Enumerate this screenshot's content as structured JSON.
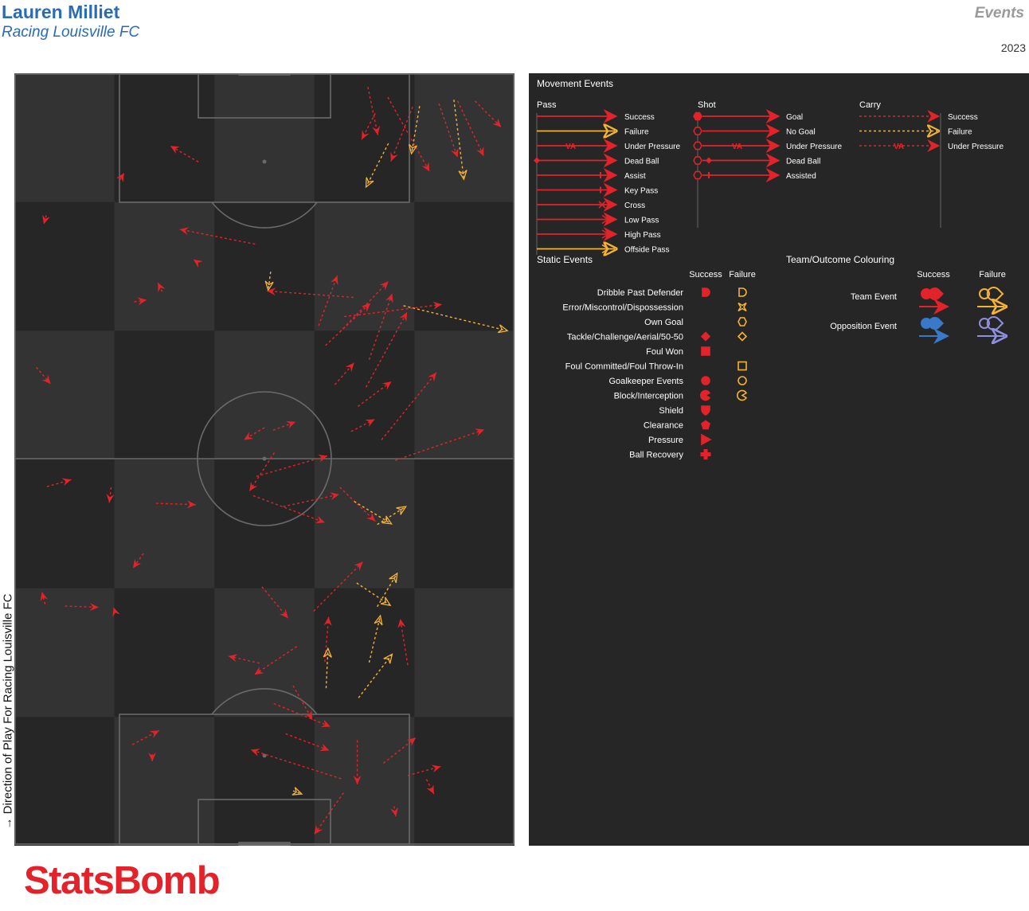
{
  "header": {
    "player": "Lauren Milliet",
    "team": "Racing Louisville FC",
    "section": "Events",
    "season": "2023"
  },
  "direction_label": "Direction of Play For Racing Louisville FC",
  "logo_text": "StatsBomb",
  "colors": {
    "success": "#e2232a",
    "failure": "#f5b335",
    "opp_success": "#3a78c9",
    "opp_failure": "#8f8fe0",
    "pitch_light": "#333333",
    "pitch_dark": "#262626",
    "pitch_lines": "#6a6a6a",
    "legend_bg": "#262626"
  },
  "legend": {
    "movement_title": "Movement Events",
    "pass": {
      "title": "Pass",
      "items": [
        "Success",
        "Failure",
        "Under Pressure",
        "Dead Ball",
        "Assist",
        "Key Pass",
        "Cross",
        "Low Pass",
        "High Pass",
        "Offside Pass"
      ]
    },
    "shot": {
      "title": "Shot",
      "items": [
        "Goal",
        "No Goal",
        "Under Pressure",
        "Dead Ball",
        "Assisted"
      ]
    },
    "carry": {
      "title": "Carry",
      "items": [
        "Success",
        "Failure",
        "Under Pressure"
      ]
    },
    "static_title": "Static Events",
    "static_success_header": "Success",
    "static_failure_header": "Failure",
    "static_items": [
      {
        "label": "Dribble Past Defender",
        "success_icon": "half-circle-icon",
        "failure_icon": "half-circle-icon"
      },
      {
        "label": "Error/Miscontrol/Dispossession",
        "success_icon": "",
        "failure_icon": "star-icon"
      },
      {
        "label": "Own Goal",
        "success_icon": "",
        "failure_icon": "hexagon-icon"
      },
      {
        "label": "Tackle/Challenge/Aerial/50-50",
        "success_icon": "diamond-icon",
        "failure_icon": "diamond-icon"
      },
      {
        "label": "Foul Won",
        "success_icon": "square-icon",
        "failure_icon": ""
      },
      {
        "label": "Foul Committed/Foul Throw-In",
        "success_icon": "",
        "failure_icon": "square-icon"
      },
      {
        "label": "Goalkeeper Events",
        "success_icon": "circle-icon",
        "failure_icon": "circle-icon"
      },
      {
        "label": "Block/Interception",
        "success_icon": "pacman-icon",
        "failure_icon": "pacman-icon"
      },
      {
        "label": "Shield",
        "success_icon": "shield-icon",
        "failure_icon": ""
      },
      {
        "label": "Clearance",
        "success_icon": "pentagon-icon",
        "failure_icon": ""
      },
      {
        "label": "Pressure",
        "success_icon": "triangle-icon",
        "failure_icon": ""
      },
      {
        "label": "Ball Recovery",
        "success_icon": "cross-icon",
        "failure_icon": ""
      }
    ],
    "team_title": "Team/Outcome Colouring",
    "team_success_header": "Success",
    "team_failure_header": "Failure",
    "team_rows": [
      "Team Event",
      "Opposition Event"
    ]
  },
  "chart_data": {
    "type": "scatter",
    "description_units": "pitch coordinates: x = width 0-80 (left to right), y = length 0-120 (attack direction up, bottom 0)",
    "xlim": [
      0,
      80
    ],
    "ylim": [
      0,
      120
    ],
    "legend_placement": "right",
    "events": [
      {
        "x": 56.6,
        "y": 118.0,
        "x2": 58.2,
        "y2": 110.5,
        "kind": "pass",
        "outcome": "success"
      },
      {
        "x": 59.8,
        "y": 116.4,
        "x2": 66.5,
        "y2": 104.8,
        "kind": "pass",
        "outcome": "success"
      },
      {
        "x": 63.8,
        "y": 114.9,
        "x2": 60.3,
        "y2": 106.4,
        "kind": "pass",
        "outcome": "success"
      },
      {
        "x": 64.9,
        "y": 115.0,
        "x2": 63.6,
        "y2": 107.6,
        "kind": "pass",
        "outcome": "failure"
      },
      {
        "x": 68.0,
        "y": 115.4,
        "x2": 71.0,
        "y2": 107.0,
        "kind": "pass",
        "outcome": "success"
      },
      {
        "x": 71.0,
        "y": 115.8,
        "x2": 75.2,
        "y2": 107.2,
        "kind": "pass",
        "outcome": "success"
      },
      {
        "x": 70.4,
        "y": 116.0,
        "x2": 72.0,
        "y2": 103.6,
        "kind": "pass",
        "outcome": "failure"
      },
      {
        "x": 73.8,
        "y": 115.8,
        "x2": 78.0,
        "y2": 111.7,
        "kind": "pass",
        "outcome": "success"
      },
      {
        "x": 57.8,
        "y": 113.9,
        "x2": 55.6,
        "y2": 109.8,
        "kind": "pass",
        "outcome": "success"
      },
      {
        "x": 59.9,
        "y": 109.2,
        "x2": 56.3,
        "y2": 102.4,
        "kind": "pass",
        "outcome": "failure"
      },
      {
        "x": 29.4,
        "y": 106.3,
        "x2": 24.9,
        "y2": 108.8,
        "kind": "carry",
        "outcome": "success"
      },
      {
        "x": 16.8,
        "y": 103.5,
        "x2": 17.5,
        "y2": 104.6,
        "kind": "carry",
        "outcome": "success"
      },
      {
        "x": 5.0,
        "y": 98.0,
        "x2": 4.6,
        "y2": 96.6,
        "kind": "carry",
        "outcome": "success"
      },
      {
        "x": 38.5,
        "y": 93.5,
        "x2": 26.4,
        "y2": 95.8,
        "kind": "pass",
        "outcome": "success"
      },
      {
        "x": 29.2,
        "y": 90.7,
        "x2": 28.6,
        "y2": 91.1,
        "kind": "carry",
        "outcome": "success"
      },
      {
        "x": 41.0,
        "y": 89.2,
        "x2": 40.6,
        "y2": 86.3,
        "kind": "pass",
        "outcome": "failure"
      },
      {
        "x": 23.6,
        "y": 86.1,
        "x2": 22.9,
        "y2": 87.5,
        "kind": "carry",
        "outcome": "success"
      },
      {
        "x": 19.1,
        "y": 84.5,
        "x2": 21.1,
        "y2": 84.8,
        "kind": "carry",
        "outcome": "success"
      },
      {
        "x": 54.3,
        "y": 85.2,
        "x2": 40.4,
        "y2": 86.2,
        "kind": "pass",
        "outcome": "success"
      },
      {
        "x": 62.3,
        "y": 83.9,
        "x2": 79.0,
        "y2": 80.0,
        "kind": "pass",
        "outcome": "failure"
      },
      {
        "x": 52.8,
        "y": 82.2,
        "x2": 68.5,
        "y2": 84.1,
        "kind": "pass",
        "outcome": "success"
      },
      {
        "x": 48.7,
        "y": 80.8,
        "x2": 51.7,
        "y2": 88.6,
        "kind": "pass",
        "outcome": "success"
      },
      {
        "x": 52.1,
        "y": 79.8,
        "x2": 59.9,
        "y2": 87.7,
        "kind": "pass",
        "outcome": "success"
      },
      {
        "x": 49.8,
        "y": 77.7,
        "x2": 57.0,
        "y2": 84.3,
        "kind": "pass",
        "outcome": "success"
      },
      {
        "x": 56.8,
        "y": 75.5,
        "x2": 60.5,
        "y2": 85.8,
        "kind": "pass",
        "outcome": "success"
      },
      {
        "x": 3.4,
        "y": 74.3,
        "x2": 5.7,
        "y2": 71.7,
        "kind": "carry",
        "outcome": "success"
      },
      {
        "x": 51.3,
        "y": 71.6,
        "x2": 54.4,
        "y2": 75.0,
        "kind": "pass",
        "outcome": "success"
      },
      {
        "x": 56.3,
        "y": 71.2,
        "x2": 62.9,
        "y2": 82.9,
        "kind": "pass",
        "outcome": "success"
      },
      {
        "x": 55.0,
        "y": 68.2,
        "x2": 60.4,
        "y2": 72.1,
        "kind": "pass",
        "outcome": "success"
      },
      {
        "x": 40.0,
        "y": 64.9,
        "x2": 36.7,
        "y2": 63.0,
        "kind": "carry",
        "outcome": "success"
      },
      {
        "x": 41.4,
        "y": 64.5,
        "x2": 45.0,
        "y2": 65.8,
        "kind": "carry",
        "outcome": "success"
      },
      {
        "x": 53.9,
        "y": 64.3,
        "x2": 57.7,
        "y2": 66.2,
        "kind": "pass",
        "outcome": "success"
      },
      {
        "x": 58.8,
        "y": 63.0,
        "x2": 67.6,
        "y2": 73.5,
        "kind": "pass",
        "outcome": "success"
      },
      {
        "x": 61.0,
        "y": 59.8,
        "x2": 75.3,
        "y2": 64.6,
        "kind": "pass",
        "outcome": "success"
      },
      {
        "x": 5.1,
        "y": 55.7,
        "x2": 9.0,
        "y2": 56.8,
        "kind": "carry",
        "outcome": "success"
      },
      {
        "x": 15.4,
        "y": 55.6,
        "x2": 15.1,
        "y2": 53.2,
        "kind": "carry",
        "outcome": "success"
      },
      {
        "x": 22.6,
        "y": 53.1,
        "x2": 29.0,
        "y2": 52.9,
        "kind": "carry",
        "outcome": "success"
      },
      {
        "x": 41.6,
        "y": 61.0,
        "x2": 37.6,
        "y2": 55.0,
        "kind": "pass",
        "outcome": "success"
      },
      {
        "x": 38.2,
        "y": 54.3,
        "x2": 49.7,
        "y2": 50.1,
        "kind": "pass",
        "outcome": "success"
      },
      {
        "x": 38.7,
        "y": 57.3,
        "x2": 50.1,
        "y2": 60.5,
        "kind": "pass",
        "outcome": "success"
      },
      {
        "x": 43.0,
        "y": 52.6,
        "x2": 52.0,
        "y2": 54.5,
        "kind": "pass",
        "outcome": "success"
      },
      {
        "x": 52.1,
        "y": 55.6,
        "x2": 57.8,
        "y2": 50.3,
        "kind": "pass",
        "outcome": "success"
      },
      {
        "x": 54.4,
        "y": 53.4,
        "x2": 60.4,
        "y2": 49.9,
        "kind": "pass",
        "outcome": "failure"
      },
      {
        "x": 58.1,
        "y": 49.8,
        "x2": 62.7,
        "y2": 52.6,
        "kind": "pass",
        "outcome": "failure"
      },
      {
        "x": 20.6,
        "y": 45.3,
        "x2": 18.9,
        "y2": 43.0,
        "kind": "carry",
        "outcome": "success"
      },
      {
        "x": 4.8,
        "y": 37.4,
        "x2": 4.3,
        "y2": 39.3,
        "kind": "carry",
        "outcome": "success"
      },
      {
        "x": 8.0,
        "y": 37.1,
        "x2": 13.4,
        "y2": 36.9,
        "kind": "carry",
        "outcome": "success"
      },
      {
        "x": 16.0,
        "y": 36.3,
        "x2": 15.8,
        "y2": 36.9,
        "kind": "carry",
        "outcome": "success"
      },
      {
        "x": 39.6,
        "y": 40.1,
        "x2": 43.8,
        "y2": 35.2,
        "kind": "pass",
        "outcome": "success"
      },
      {
        "x": 47.9,
        "y": 36.3,
        "x2": 55.8,
        "y2": 44.0,
        "kind": "pass",
        "outcome": "success"
      },
      {
        "x": 54.8,
        "y": 40.7,
        "x2": 60.2,
        "y2": 37.2,
        "kind": "pass",
        "outcome": "failure"
      },
      {
        "x": 58.1,
        "y": 37.0,
        "x2": 61.3,
        "y2": 42.2,
        "kind": "pass",
        "outcome": "failure"
      },
      {
        "x": 45.2,
        "y": 30.8,
        "x2": 38.4,
        "y2": 26.4,
        "kind": "pass",
        "outcome": "success"
      },
      {
        "x": 49.7,
        "y": 28.4,
        "x2": 50.3,
        "y2": 35.4,
        "kind": "pass",
        "outcome": "success"
      },
      {
        "x": 56.8,
        "y": 28.3,
        "x2": 58.6,
        "y2": 35.6,
        "kind": "pass",
        "outcome": "failure"
      },
      {
        "x": 63.0,
        "y": 27.9,
        "x2": 61.8,
        "y2": 35.1,
        "kind": "pass",
        "outcome": "success"
      },
      {
        "x": 39.2,
        "y": 28.2,
        "x2": 34.2,
        "y2": 29.3,
        "kind": "carry",
        "outcome": "success"
      },
      {
        "x": 44.6,
        "y": 24.7,
        "x2": 47.7,
        "y2": 19.4,
        "kind": "pass",
        "outcome": "success"
      },
      {
        "x": 49.9,
        "y": 24.3,
        "x2": 50.2,
        "y2": 30.5,
        "kind": "pass",
        "outcome": "failure"
      },
      {
        "x": 55.1,
        "y": 22.8,
        "x2": 60.5,
        "y2": 29.6,
        "kind": "pass",
        "outcome": "failure"
      },
      {
        "x": 41.5,
        "y": 21.9,
        "x2": 50.6,
        "y2": 18.3,
        "kind": "pass",
        "outcome": "success"
      },
      {
        "x": 18.8,
        "y": 15.5,
        "x2": 23.1,
        "y2": 17.7,
        "kind": "carry",
        "outcome": "success"
      },
      {
        "x": 22.0,
        "y": 14.0,
        "x2": 22.0,
        "y2": 12.9,
        "kind": "carry",
        "outcome": "success"
      },
      {
        "x": 43.4,
        "y": 17.2,
        "x2": 50.4,
        "y2": 14.6,
        "kind": "pass",
        "outcome": "success"
      },
      {
        "x": 54.9,
        "y": 16.2,
        "x2": 54.9,
        "y2": 9.3,
        "kind": "pass",
        "outcome": "success"
      },
      {
        "x": 59.1,
        "y": 12.6,
        "x2": 64.3,
        "y2": 16.6,
        "kind": "pass",
        "outcome": "success"
      },
      {
        "x": 63.0,
        "y": 10.7,
        "x2": 68.3,
        "y2": 12.1,
        "kind": "pass",
        "outcome": "success"
      },
      {
        "x": 52.3,
        "y": 10.2,
        "x2": 37.8,
        "y2": 14.7,
        "kind": "pass",
        "outcome": "success"
      },
      {
        "x": 44.6,
        "y": 8.3,
        "x2": 46.0,
        "y2": 7.8,
        "kind": "pass",
        "outcome": "failure"
      },
      {
        "x": 52.7,
        "y": 8.0,
        "x2": 48.0,
        "y2": 1.5,
        "kind": "pass",
        "outcome": "success"
      },
      {
        "x": 60.8,
        "y": 5.9,
        "x2": 61.1,
        "y2": 4.3,
        "kind": "pass",
        "outcome": "success"
      },
      {
        "x": 66.0,
        "y": 10.1,
        "x2": 67.2,
        "y2": 7.8,
        "kind": "pass",
        "outcome": "success"
      }
    ]
  }
}
